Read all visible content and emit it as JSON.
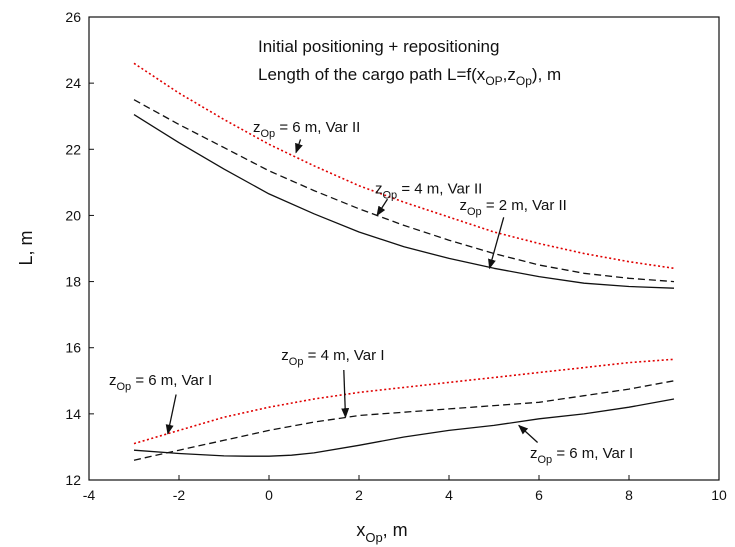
{
  "chart_data": {
    "type": "line",
    "title_lines": [
      "Initial positioning + repositioning",
      "Length of the cargo path  L=f(x",
      "OP",
      ",z",
      "Op",
      "), m"
    ],
    "xlabel": {
      "main": "x",
      "sub": "Op",
      "rest": ", m"
    },
    "ylabel": "L, m",
    "xlim": [
      -4,
      10
    ],
    "ylim": [
      12,
      26
    ],
    "xticks": [
      -4,
      -2,
      0,
      2,
      4,
      6,
      8,
      10
    ],
    "yticks": [
      12,
      14,
      16,
      18,
      20,
      22,
      24,
      26
    ],
    "grid": false,
    "series": [
      {
        "key": "s1",
        "color": "#e00000",
        "style": "dotted",
        "x": [
          -3,
          -2,
          -1,
          0,
          1,
          2,
          3,
          4,
          5,
          6,
          7,
          8,
          9
        ],
        "y": [
          24.6,
          23.7,
          22.9,
          22.15,
          21.5,
          20.9,
          20.4,
          19.95,
          19.5,
          19.15,
          18.85,
          18.6,
          18.4
        ]
      },
      {
        "key": "s2",
        "color": "#111111",
        "style": "dashed",
        "x": [
          -3,
          -2,
          -1,
          0,
          1,
          2,
          3,
          4,
          5,
          6,
          7,
          8,
          9
        ],
        "y": [
          23.5,
          22.75,
          22.05,
          21.35,
          20.75,
          20.2,
          19.7,
          19.25,
          18.85,
          18.5,
          18.25,
          18.1,
          18.0
        ]
      },
      {
        "key": "s3",
        "color": "#111111",
        "style": "solid",
        "x": [
          -3,
          -2,
          -1,
          0,
          1,
          2,
          3,
          4,
          5,
          6,
          7,
          8,
          9
        ],
        "y": [
          23.05,
          22.2,
          21.4,
          20.65,
          20.05,
          19.5,
          19.05,
          18.7,
          18.4,
          18.15,
          17.95,
          17.85,
          17.8
        ]
      },
      {
        "key": "s4",
        "color": "#e00000",
        "style": "dotted",
        "x": [
          -3,
          -2,
          -1,
          0,
          1,
          2,
          3,
          4,
          5,
          6,
          7,
          8,
          9
        ],
        "y": [
          13.1,
          13.5,
          13.9,
          14.2,
          14.45,
          14.65,
          14.8,
          14.95,
          15.1,
          15.25,
          15.4,
          15.55,
          15.65
        ]
      },
      {
        "key": "s5",
        "color": "#111111",
        "style": "dashed",
        "x": [
          -3,
          -2,
          -1,
          0,
          1,
          2,
          3,
          4,
          5,
          6,
          7,
          8,
          9
        ],
        "y": [
          12.6,
          12.9,
          13.2,
          13.5,
          13.75,
          13.95,
          14.05,
          14.15,
          14.25,
          14.35,
          14.55,
          14.75,
          15.0
        ]
      },
      {
        "key": "s6",
        "color": "#111111",
        "style": "solid",
        "x": [
          -3,
          -2,
          -1,
          -0.5,
          0,
          0.5,
          1,
          2,
          3,
          4,
          5,
          6,
          7,
          8,
          9
        ],
        "y": [
          12.9,
          12.8,
          12.73,
          12.72,
          12.72,
          12.75,
          12.82,
          13.05,
          13.3,
          13.5,
          13.65,
          13.85,
          14.0,
          14.2,
          14.45
        ]
      }
    ],
    "annotations": [
      {
        "key": "a1",
        "pre": "z",
        "sub": "Op",
        "post": " = 6 m, Var II",
        "label_at": [
          0.8,
          22.7
        ],
        "arrow_to": [
          0.6,
          21.9
        ]
      },
      {
        "key": "a2",
        "pre": "z",
        "sub": "Op",
        "post": " = 4 m, Var II",
        "label_at": [
          2.8,
          20.85
        ],
        "arrow_to": [
          2.4,
          20.0
        ]
      },
      {
        "key": "a3",
        "pre": "z",
        "sub": "Op",
        "post": " = 2 m, Var II",
        "label_at": [
          5.3,
          20.35
        ],
        "arrow_to": [
          4.9,
          18.4
        ]
      },
      {
        "key": "a4",
        "pre": "z",
        "sub": "Op",
        "post": " = 4 m, Var I",
        "label_at": [
          1.65,
          15.75
        ],
        "arrow_to": [
          1.7,
          13.9
        ]
      },
      {
        "key": "a5",
        "pre": "z",
        "sub": "Op",
        "post": " = 6 m, Var I",
        "label_at": [
          -2.0,
          15.0
        ],
        "arrow_to": [
          -2.25,
          13.4
        ]
      },
      {
        "key": "a6",
        "pre": "z",
        "sub": "Op",
        "post": " = 6 m, Var I",
        "label_at": [
          6.2,
          12.85
        ],
        "arrow_to": [
          5.55,
          13.65
        ]
      }
    ]
  }
}
